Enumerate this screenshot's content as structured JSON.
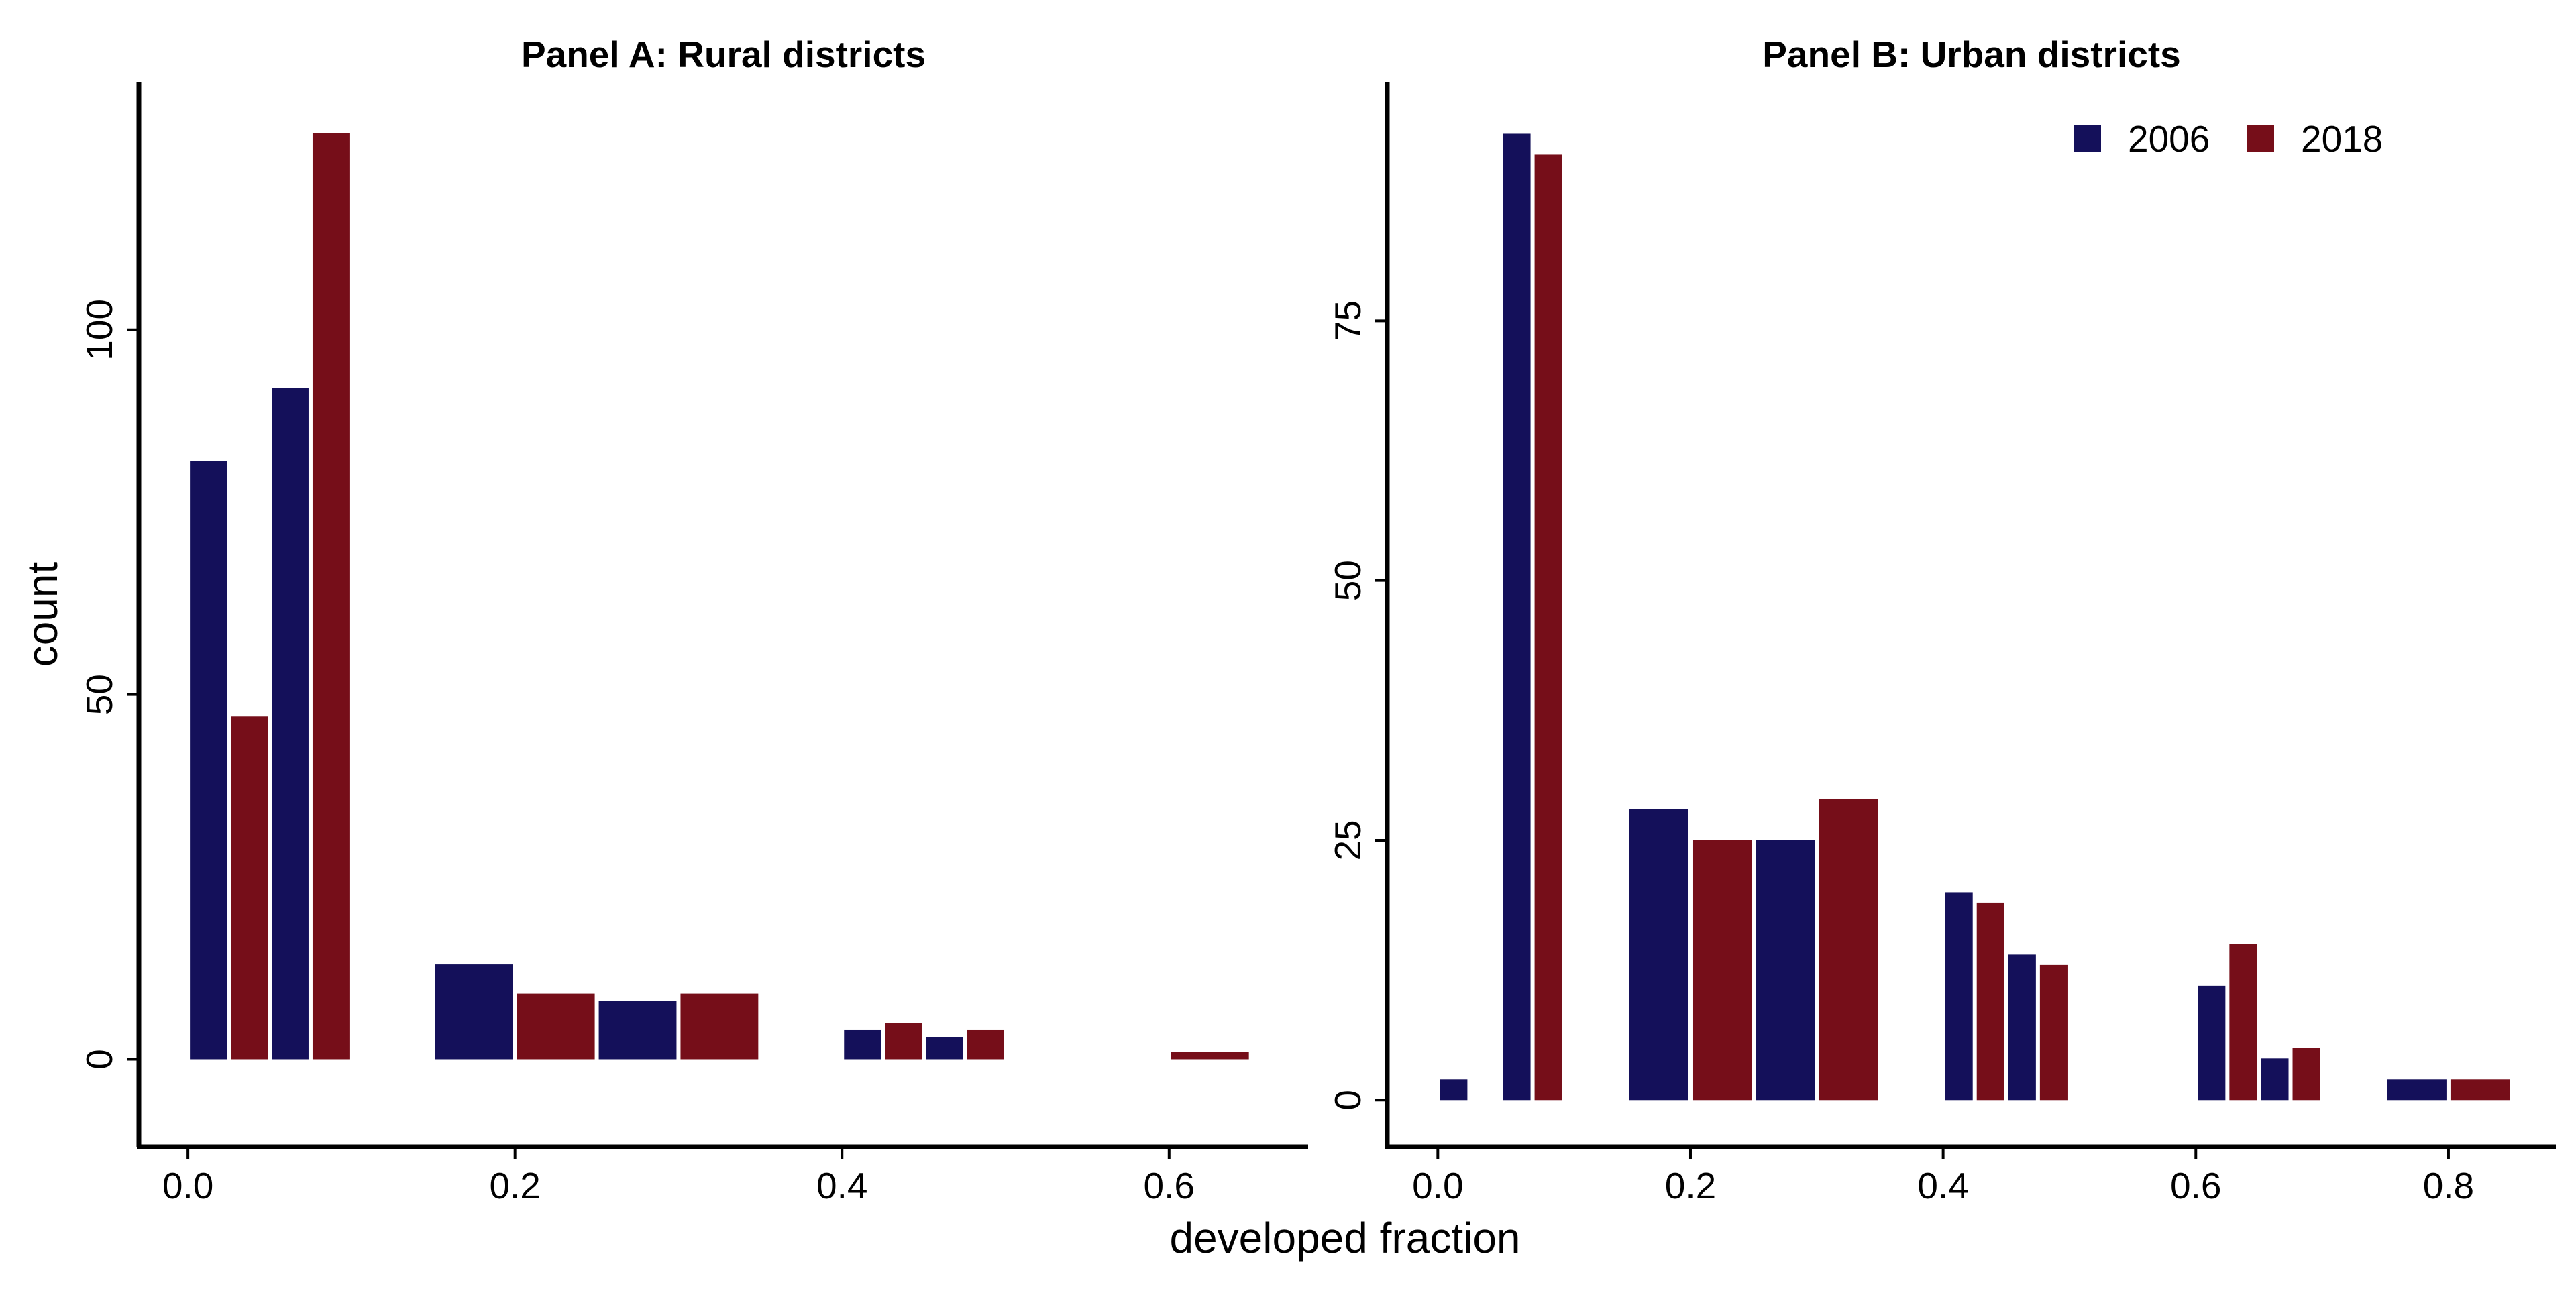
{
  "chart_data": [
    {
      "type": "bar",
      "title": "Panel A: Rural districts",
      "ylabel": "count",
      "xlim": [
        -0.03,
        0.685
      ],
      "ylim": [
        -12,
        134
      ],
      "xticks": [
        "0.0",
        "0.2",
        "0.4",
        "0.6"
      ],
      "yticks": [
        "0",
        "50",
        "100"
      ],
      "series": [
        {
          "name": "2006",
          "color": "#14105a",
          "bars": [
            {
              "x0": 0.0,
              "x1": 0.025,
              "value": 82
            },
            {
              "x0": 0.05,
              "x1": 0.075,
              "value": 92
            },
            {
              "x0": 0.15,
              "x1": 0.2,
              "value": 13
            },
            {
              "x0": 0.25,
              "x1": 0.3,
              "value": 8
            },
            {
              "x0": 0.4,
              "x1": 0.425,
              "value": 4
            },
            {
              "x0": 0.45,
              "x1": 0.475,
              "value": 3
            }
          ]
        },
        {
          "name": "2018",
          "color": "#760e19",
          "bars": [
            {
              "x0": 0.025,
              "x1": 0.05,
              "value": 47
            },
            {
              "x0": 0.075,
              "x1": 0.1,
              "value": 127
            },
            {
              "x0": 0.2,
              "x1": 0.25,
              "value": 9
            },
            {
              "x0": 0.3,
              "x1": 0.35,
              "value": 9
            },
            {
              "x0": 0.425,
              "x1": 0.45,
              "value": 5
            },
            {
              "x0": 0.475,
              "x1": 0.5,
              "value": 4
            },
            {
              "x0": 0.6,
              "x1": 0.65,
              "value": 1
            }
          ]
        }
      ]
    },
    {
      "type": "bar",
      "title": "Panel B: Urban districts",
      "xlim": [
        -0.04,
        0.885
      ],
      "ylim": [
        -4.5,
        98
      ],
      "xticks": [
        "0.0",
        "0.2",
        "0.4",
        "0.6",
        "0.8"
      ],
      "yticks": [
        "0",
        "25",
        "50",
        "75"
      ],
      "legend": {
        "position": "top-right",
        "entries": [
          "2006",
          "2018"
        ]
      },
      "series": [
        {
          "name": "2006",
          "color": "#14105a",
          "bars": [
            {
              "x0": 0.0,
              "x1": 0.025,
              "value": 2
            },
            {
              "x0": 0.05,
              "x1": 0.075,
              "value": 93
            },
            {
              "x0": 0.15,
              "x1": 0.2,
              "value": 28
            },
            {
              "x0": 0.25,
              "x1": 0.3,
              "value": 25
            },
            {
              "x0": 0.4,
              "x1": 0.425,
              "value": 20
            },
            {
              "x0": 0.45,
              "x1": 0.475,
              "value": 14
            },
            {
              "x0": 0.6,
              "x1": 0.625,
              "value": 11
            },
            {
              "x0": 0.65,
              "x1": 0.675,
              "value": 4
            },
            {
              "x0": 0.75,
              "x1": 0.8,
              "value": 2
            }
          ]
        },
        {
          "name": "2018",
          "color": "#760e19",
          "bars": [
            {
              "x0": 0.075,
              "x1": 0.1,
              "value": 91
            },
            {
              "x0": 0.2,
              "x1": 0.25,
              "value": 25
            },
            {
              "x0": 0.3,
              "x1": 0.35,
              "value": 29
            },
            {
              "x0": 0.425,
              "x1": 0.45,
              "value": 19
            },
            {
              "x0": 0.475,
              "x1": 0.5,
              "value": 13
            },
            {
              "x0": 0.625,
              "x1": 0.65,
              "value": 15
            },
            {
              "x0": 0.675,
              "x1": 0.7,
              "value": 5
            },
            {
              "x0": 0.8,
              "x1": 0.85,
              "value": 2
            }
          ]
        }
      ]
    }
  ],
  "shared_xlabel": "developed fraction"
}
